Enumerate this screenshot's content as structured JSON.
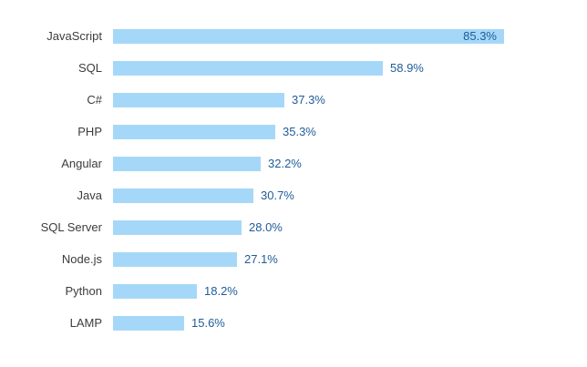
{
  "chart_data": {
    "type": "bar",
    "orientation": "horizontal",
    "title": "",
    "xlabel": "",
    "ylabel": "",
    "xlim": [
      0,
      100
    ],
    "grid": false,
    "legend": false,
    "categories": [
      "JavaScript",
      "SQL",
      "C#",
      "PHP",
      "Angular",
      "Java",
      "SQL Server",
      "Node.js",
      "Python",
      "LAMP"
    ],
    "values": [
      85.3,
      58.9,
      37.3,
      35.3,
      32.2,
      30.7,
      28.0,
      27.1,
      18.2,
      15.6
    ],
    "value_labels": [
      "85.3%",
      "58.9%",
      "37.3%",
      "35.3%",
      "32.2%",
      "30.7%",
      "28.0%",
      "27.1%",
      "18.2%",
      "15.6%"
    ],
    "value_label_position": [
      "inside",
      "outside",
      "outside",
      "outside",
      "outside",
      "outside",
      "outside",
      "outside",
      "outside",
      "outside"
    ],
    "colors": {
      "bar_fill": "#A5D8F8",
      "value_label_text": "#1F5C99",
      "category_label_text": "#3C3C3C",
      "background": "#FFFFFF"
    }
  }
}
